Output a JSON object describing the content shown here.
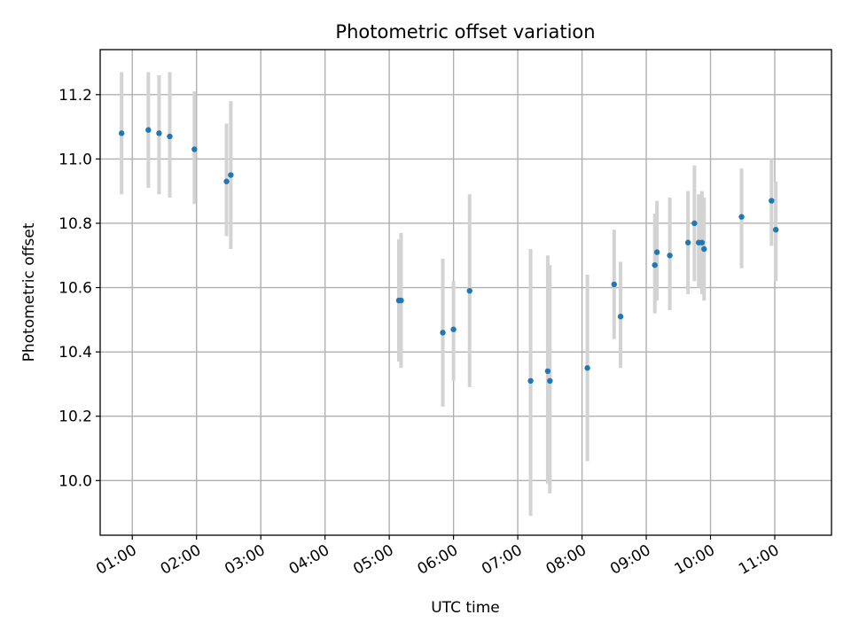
{
  "chart_data": {
    "type": "scatter",
    "title": "Photometric offset variation",
    "xlabel": "UTC time",
    "ylabel": "Photometric offset",
    "x_ticks": [
      "01:00",
      "02:00",
      "03:00",
      "04:00",
      "05:00",
      "06:00",
      "07:00",
      "08:00",
      "09:00",
      "10:00",
      "11:00"
    ],
    "y_ticks": [
      "10.0",
      "10.2",
      "10.4",
      "10.6",
      "10.8",
      "11.0",
      "11.2"
    ],
    "xlim": [
      "00:30",
      "11:53"
    ],
    "ylim": [
      9.83,
      11.34
    ],
    "grid": true,
    "colors": {
      "point": "#1f77b4",
      "errorbar": "#d3d3d3",
      "grid": "#b0b0b0"
    },
    "series": [
      {
        "points": [
          {
            "x": "00:50",
            "y": 11.08,
            "low": 10.89,
            "high": 11.27
          },
          {
            "x": "01:15",
            "y": 11.09,
            "low": 10.91,
            "high": 11.27
          },
          {
            "x": "01:25",
            "y": 11.08,
            "low": 10.89,
            "high": 11.26
          },
          {
            "x": "01:35",
            "y": 11.07,
            "low": 10.88,
            "high": 11.27
          },
          {
            "x": "01:58",
            "y": 11.03,
            "low": 10.86,
            "high": 11.21
          },
          {
            "x": "02:28",
            "y": 10.93,
            "low": 10.76,
            "high": 11.11
          },
          {
            "x": "02:32",
            "y": 10.95,
            "low": 10.72,
            "high": 11.18
          },
          {
            "x": "05:09",
            "y": 10.56,
            "low": 10.37,
            "high": 10.75
          },
          {
            "x": "05:11",
            "y": 10.56,
            "low": 10.35,
            "high": 10.77
          },
          {
            "x": "05:50",
            "y": 10.46,
            "low": 10.23,
            "high": 10.69
          },
          {
            "x": "06:00",
            "y": 10.47,
            "low": 10.31,
            "high": 10.62
          },
          {
            "x": "06:15",
            "y": 10.59,
            "low": 10.29,
            "high": 10.89
          },
          {
            "x": "07:12",
            "y": 10.31,
            "low": 9.89,
            "high": 10.72
          },
          {
            "x": "07:28",
            "y": 10.34,
            "low": 9.99,
            "high": 10.7
          },
          {
            "x": "07:30",
            "y": 10.31,
            "low": 9.96,
            "high": 10.67
          },
          {
            "x": "08:05",
            "y": 10.35,
            "low": 10.06,
            "high": 10.64
          },
          {
            "x": "08:30",
            "y": 10.61,
            "low": 10.44,
            "high": 10.78
          },
          {
            "x": "08:36",
            "y": 10.51,
            "low": 10.35,
            "high": 10.68
          },
          {
            "x": "09:08",
            "y": 10.67,
            "low": 10.52,
            "high": 10.83
          },
          {
            "x": "09:10",
            "y": 10.71,
            "low": 10.56,
            "high": 10.87
          },
          {
            "x": "09:22",
            "y": 10.7,
            "low": 10.53,
            "high": 10.88
          },
          {
            "x": "09:39",
            "y": 10.74,
            "low": 10.58,
            "high": 10.9
          },
          {
            "x": "09:45",
            "y": 10.8,
            "low": 10.62,
            "high": 10.98
          },
          {
            "x": "09:49",
            "y": 10.74,
            "low": 10.6,
            "high": 10.89
          },
          {
            "x": "09:52",
            "y": 10.74,
            "low": 10.58,
            "high": 10.9
          },
          {
            "x": "09:54",
            "y": 10.72,
            "low": 10.56,
            "high": 10.88
          },
          {
            "x": "10:29",
            "y": 10.82,
            "low": 10.66,
            "high": 10.97
          },
          {
            "x": "10:57",
            "y": 10.87,
            "low": 10.73,
            "high": 11.0
          },
          {
            "x": "11:01",
            "y": 10.78,
            "low": 10.62,
            "high": 10.93
          }
        ]
      }
    ]
  }
}
